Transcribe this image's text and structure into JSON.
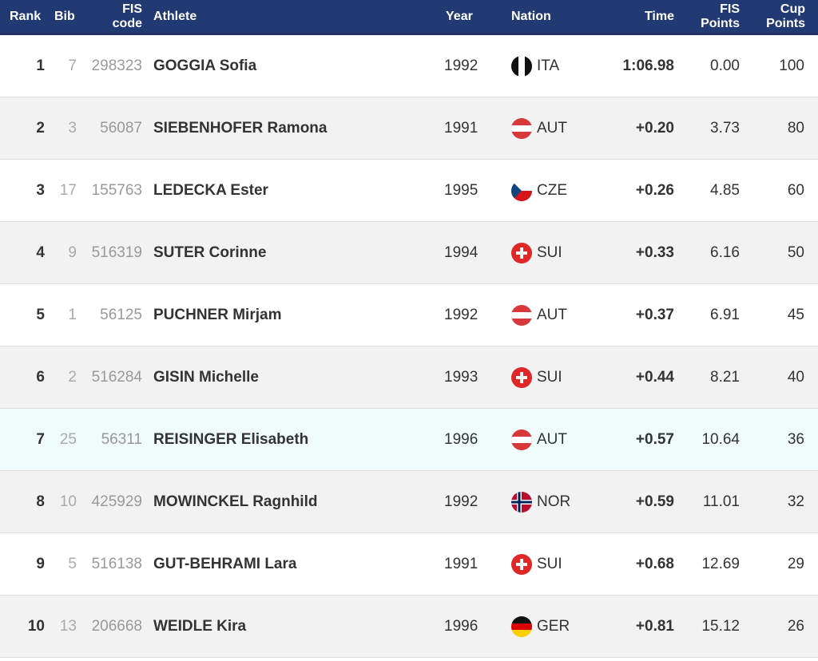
{
  "header": {
    "rank": "Rank",
    "bib": "Bib",
    "fis_line1": "FIS",
    "fis_line2": "code",
    "athlete": "Athlete",
    "year": "Year",
    "nation": "Nation",
    "time": "Time",
    "fispts_line1": "FIS",
    "fispts_line2": "Points",
    "cuppts_line1": "Cup",
    "cuppts_line2": "Points"
  },
  "colors": {
    "header_bg": "#223a73",
    "row_alt": "#f2f2f2",
    "row_highlight": "#f0fbfb"
  },
  "rows": [
    {
      "rank": "1",
      "bib": "7",
      "fis_code": "298323",
      "athlete": "GOGGIA Sofia",
      "year": "1992",
      "nation": "ITA",
      "flag": "flag-ita-icon",
      "time": "1:06.98",
      "fis_points": "0.00",
      "cup_points": "100"
    },
    {
      "rank": "2",
      "bib": "3",
      "fis_code": "56087",
      "athlete": "SIEBENHOFER Ramona",
      "year": "1991",
      "nation": "AUT",
      "flag": "flag-aut-icon",
      "time": "+0.20",
      "fis_points": "3.73",
      "cup_points": "80"
    },
    {
      "rank": "3",
      "bib": "17",
      "fis_code": "155763",
      "athlete": "LEDECKA Ester",
      "year": "1995",
      "nation": "CZE",
      "flag": "flag-cze-icon",
      "time": "+0.26",
      "fis_points": "4.85",
      "cup_points": "60"
    },
    {
      "rank": "4",
      "bib": "9",
      "fis_code": "516319",
      "athlete": "SUTER Corinne",
      "year": "1994",
      "nation": "SUI",
      "flag": "flag-sui-icon",
      "time": "+0.33",
      "fis_points": "6.16",
      "cup_points": "50"
    },
    {
      "rank": "5",
      "bib": "1",
      "fis_code": "56125",
      "athlete": "PUCHNER Mirjam",
      "year": "1992",
      "nation": "AUT",
      "flag": "flag-aut-icon",
      "time": "+0.37",
      "fis_points": "6.91",
      "cup_points": "45"
    },
    {
      "rank": "6",
      "bib": "2",
      "fis_code": "516284",
      "athlete": "GISIN Michelle",
      "year": "1993",
      "nation": "SUI",
      "flag": "flag-sui-icon",
      "time": "+0.44",
      "fis_points": "8.21",
      "cup_points": "40"
    },
    {
      "rank": "7",
      "bib": "25",
      "fis_code": "56311",
      "athlete": "REISINGER Elisabeth",
      "year": "1996",
      "nation": "AUT",
      "flag": "flag-aut-icon",
      "time": "+0.57",
      "fis_points": "10.64",
      "cup_points": "36"
    },
    {
      "rank": "8",
      "bib": "10",
      "fis_code": "425929",
      "athlete": "MOWINCKEL Ragnhild",
      "year": "1992",
      "nation": "NOR",
      "flag": "flag-nor-icon",
      "time": "+0.59",
      "fis_points": "11.01",
      "cup_points": "32"
    },
    {
      "rank": "9",
      "bib": "5",
      "fis_code": "516138",
      "athlete": "GUT-BEHRAMI Lara",
      "year": "1991",
      "nation": "SUI",
      "flag": "flag-sui-icon",
      "time": "+0.68",
      "fis_points": "12.69",
      "cup_points": "29"
    },
    {
      "rank": "10",
      "bib": "13",
      "fis_code": "206668",
      "athlete": "WEIDLE Kira",
      "year": "1996",
      "nation": "GER",
      "flag": "flag-ger-icon",
      "time": "+0.81",
      "fis_points": "15.12",
      "cup_points": "26"
    }
  ]
}
